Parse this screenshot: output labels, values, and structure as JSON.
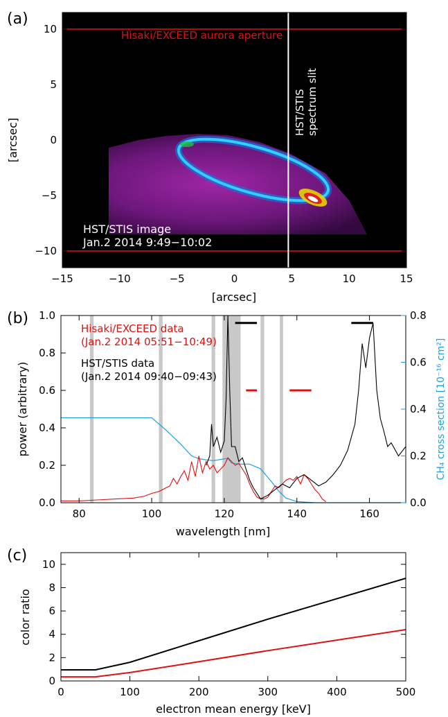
{
  "chart_data": [
    {
      "panel": "(a)",
      "type": "image",
      "xlabel": "[arcsec]",
      "ylabel": "[arcsec]",
      "xlim": [
        -15,
        15
      ],
      "ylim": [
        -11.5,
        11.5
      ],
      "xticks": [
        -15,
        -10,
        -5,
        0,
        5,
        10,
        15
      ],
      "yticks": [
        10,
        5,
        0,
        -5,
        -10
      ],
      "aperture_label": "Hisaki/EXCEED aurora aperture",
      "aperture_y": [
        10,
        -10
      ],
      "slit_x": 4.7,
      "slit_label_1": "HST/STIS",
      "slit_label_2": "spectrum slit",
      "image_label_1": "HST/STIS image",
      "image_label_2": "Jan.2 2014 9:49−10:02",
      "colors": {
        "background": "#000000",
        "aperture": "#e01010",
        "slit": "#ffffff",
        "haze": "#7a1a8a",
        "oval": "#1ec0ff"
      }
    },
    {
      "panel": "(b)",
      "type": "line",
      "xlabel": "wavelength [nm]",
      "ylabel": "power (arbitrary)",
      "y2label": "CH₄ cross section [10⁻¹⁶ cm²]",
      "xlim": [
        75,
        170
      ],
      "ylim": [
        0,
        1.0
      ],
      "y2lim": [
        0,
        0.8
      ],
      "xticks": [
        80,
        100,
        120,
        140,
        160
      ],
      "yticks": [
        0.0,
        0.2,
        0.4,
        0.6,
        0.8,
        1.0
      ],
      "y2ticks": [
        0.0,
        0.2,
        0.4,
        0.6,
        0.8
      ],
      "legend": [
        {
          "line1": "Hisaki/EXCEED data",
          "line2": "(Jan.2 2014 05:51−10:49)",
          "color": "#e01010"
        },
        {
          "line1": "HST/STIS data",
          "line2": "(Jan.2 2014 09:40−09:43)",
          "color": "#000000"
        }
      ],
      "gray_bands": [
        [
          83,
          84
        ],
        [
          102,
          103
        ],
        [
          116.5,
          117.5
        ],
        [
          119.5,
          124.5
        ],
        [
          130,
          131
        ],
        [
          135.3,
          136.2
        ]
      ],
      "range_bars": [
        {
          "x": [
            123,
            129
          ],
          "y": 0.96,
          "color": "#000000"
        },
        {
          "x": [
            155,
            161
          ],
          "y": 0.96,
          "color": "#000000"
        },
        {
          "x": [
            126,
            129
          ],
          "y": 0.6,
          "color": "#e01010"
        },
        {
          "x": [
            138,
            144
          ],
          "y": 0.6,
          "color": "#e01010"
        }
      ],
      "series": [
        {
          "name": "CH₄ cross section",
          "color": "#1ea0e0",
          "axis": "right",
          "x": [
            75,
            81,
            100,
            104,
            108,
            111,
            113,
            115,
            117,
            119,
            121,
            122,
            124,
            127,
            130,
            133,
            135,
            137,
            140,
            145,
            150,
            170
          ],
          "y": [
            0.363,
            0.363,
            0.363,
            0.31,
            0.25,
            0.2,
            0.188,
            0.183,
            0.18,
            0.185,
            0.19,
            0.17,
            0.165,
            0.165,
            0.145,
            0.09,
            0.05,
            0.02,
            0.005,
            0.0,
            0.0,
            0.0
          ]
        },
        {
          "name": "Hisaki/EXCEED data",
          "color": "#e01010",
          "axis": "left",
          "x": [
            75,
            80,
            85,
            90,
            95,
            98,
            100,
            102,
            104,
            105,
            106,
            107,
            108,
            109,
            110,
            111,
            112,
            113,
            114,
            115,
            116,
            117,
            118,
            119,
            120,
            121,
            122,
            123,
            124,
            125,
            126,
            127,
            128,
            129,
            130,
            131,
            132,
            133,
            134,
            135,
            136,
            137,
            138,
            139,
            140,
            141,
            142,
            143,
            144,
            145,
            146,
            147,
            148
          ],
          "y": [
            0.01,
            0.01,
            0.015,
            0.02,
            0.025,
            0.035,
            0.05,
            0.06,
            0.08,
            0.09,
            0.13,
            0.1,
            0.14,
            0.17,
            0.12,
            0.22,
            0.14,
            0.25,
            0.16,
            0.22,
            0.18,
            0.2,
            0.16,
            0.18,
            0.2,
            0.24,
            0.22,
            0.2,
            0.21,
            0.18,
            0.15,
            0.1,
            0.06,
            0.03,
            0.02,
            0.02,
            0.03,
            0.06,
            0.09,
            0.08,
            0.1,
            0.12,
            0.13,
            0.12,
            0.14,
            0.1,
            0.15,
            0.13,
            0.1,
            0.07,
            0.05,
            0.02,
            0.005
          ]
        },
        {
          "name": "HST/STIS data",
          "color": "#000000",
          "axis": "left",
          "x": [
            115,
            116,
            116.5,
            117,
            118,
            119,
            120,
            120.5,
            121,
            121.5,
            122,
            123,
            124,
            125,
            126,
            127,
            128,
            129,
            130,
            132,
            134,
            136,
            138,
            140,
            142,
            144,
            146,
            148,
            150,
            152,
            154,
            156,
            157,
            158,
            159,
            160,
            161,
            162,
            163,
            164,
            165,
            166,
            168,
            170
          ],
          "y": [
            0.2,
            0.25,
            0.42,
            0.3,
            0.35,
            0.27,
            0.33,
            0.55,
            1.0,
            0.6,
            0.3,
            0.3,
            0.22,
            0.24,
            0.18,
            0.12,
            0.08,
            0.05,
            0.02,
            0.04,
            0.07,
            0.1,
            0.08,
            0.13,
            0.15,
            0.12,
            0.09,
            0.11,
            0.15,
            0.2,
            0.28,
            0.42,
            0.6,
            0.85,
            0.72,
            0.88,
            0.96,
            0.6,
            0.45,
            0.38,
            0.3,
            0.32,
            0.25,
            0.3
          ]
        }
      ]
    },
    {
      "panel": "(c)",
      "type": "line",
      "xlabel": "electron mean energy [keV]",
      "ylabel": "color ratio",
      "xlim": [
        0,
        500
      ],
      "ylim": [
        0,
        11
      ],
      "xticks": [
        0,
        100,
        200,
        300,
        400,
        500
      ],
      "yticks": [
        0,
        2,
        4,
        6,
        8,
        10
      ],
      "series": [
        {
          "color": "#000000",
          "x": [
            0,
            50,
            100,
            200,
            300,
            400,
            500
          ],
          "y": [
            0.95,
            0.95,
            1.6,
            3.45,
            5.3,
            7.05,
            8.8
          ]
        },
        {
          "color": "#e01010",
          "x": [
            0,
            50,
            100,
            200,
            300,
            400,
            500
          ],
          "y": [
            0.35,
            0.35,
            0.72,
            1.65,
            2.6,
            3.5,
            4.4
          ]
        }
      ]
    }
  ]
}
